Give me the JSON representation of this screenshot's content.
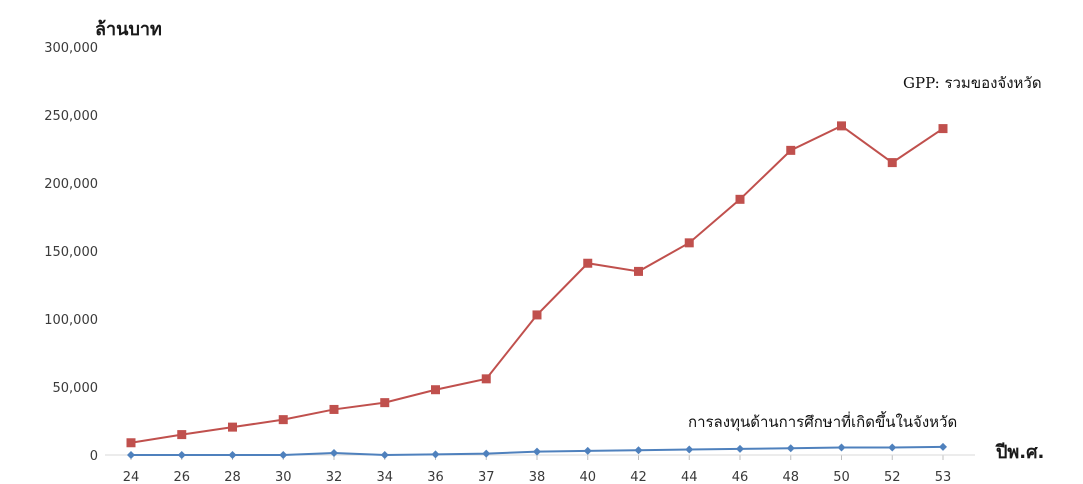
{
  "chart_data": {
    "type": "line",
    "ylabel": "ล้านบาท",
    "xlabel": "ปีพ.ศ.",
    "categories": [
      "24",
      "26",
      "28",
      "30",
      "32",
      "34",
      "36",
      "37",
      "38",
      "40",
      "42",
      "44",
      "46",
      "48",
      "50",
      "52",
      "53"
    ],
    "ylim": [
      0,
      300000
    ],
    "yticks": [
      0,
      50000,
      100000,
      150000,
      200000,
      250000,
      300000
    ],
    "ytick_labels": [
      "0",
      "50,000",
      "100,000",
      "150,000",
      "200,000",
      "250,000",
      "300,000"
    ],
    "grid": false,
    "series": [
      {
        "name": "GPP: รวมของจังหวัด",
        "color": "#c0504d",
        "marker": "square",
        "values": [
          9000,
          15000,
          20500,
          26000,
          33500,
          38500,
          48000,
          56000,
          103000,
          141000,
          135000,
          156000,
          188000,
          224000,
          242000,
          215000,
          240000
        ]
      },
      {
        "name": "การลงทุนด้านการศึกษาที่เกิดขึ้นในจังหวัด",
        "color": "#4f81bd",
        "marker": "diamond",
        "values": [
          0,
          0,
          0,
          0,
          1500,
          0,
          500,
          1000,
          2500,
          3000,
          3500,
          4000,
          4500,
          5000,
          5500,
          5500,
          6000
        ]
      }
    ]
  }
}
